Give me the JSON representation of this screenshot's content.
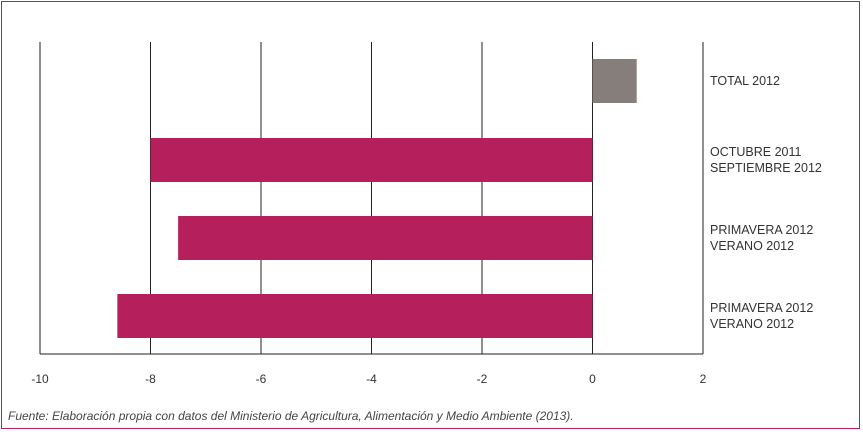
{
  "chart_data": {
    "type": "bar",
    "orientation": "horizontal",
    "categories": [
      [
        "TOTAL 2012"
      ],
      [
        "OCTUBRE 2011",
        "SEPTIEMBRE 2012"
      ],
      [
        "PRIMAVERA 2012",
        "VERANO 2012"
      ],
      [
        "PRIMAVERA 2012",
        "VERANO 2012"
      ]
    ],
    "values": [
      0.8,
      -8.0,
      -7.5,
      -8.6
    ],
    "bar_colors": [
      "#857e7a",
      "#b51f5c",
      "#b51f5c",
      "#b51f5c"
    ],
    "xlim": [
      -10,
      2
    ],
    "xticks": [
      -10,
      -8,
      -6,
      -4,
      -2,
      0,
      2
    ],
    "xtick_labels": [
      "-10",
      "-8",
      "-6",
      "-4",
      "-2",
      "0",
      "2"
    ],
    "grid": true,
    "title": "",
    "xlabel": "",
    "ylabel": ""
  },
  "source_note": "Fuente: Elaboración propia con datos del Ministerio de Agricultura, Alimentación y Medio Ambiente (2013).",
  "colors": {
    "accent": "#b51f5c",
    "total": "#857e7a",
    "grid": "#222222",
    "frame": "#b51f5c"
  }
}
